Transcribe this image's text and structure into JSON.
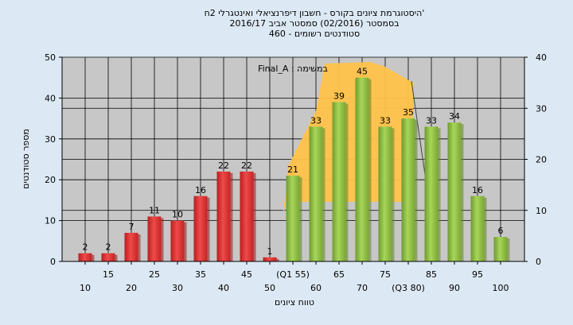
{
  "chart_data": {
    "type": "bar",
    "title_lines": [
      "'היסטוגרמת ציונים בקורס - חשבון דיפרנציאלי ואינטגרלי 2ח",
      "בסמסטר   (02/2016)  סמסטר אביב 2016/17",
      "סטודנטים רשומים - 460"
    ],
    "annotation": "במשימה : Final_A",
    "xlabel": "טווח ציונים",
    "ylabel": "מספר סטודנטים",
    "ylim": [
      0,
      50
    ],
    "y2lim": [
      0,
      40
    ],
    "yticks": [
      0,
      10,
      20,
      30,
      40,
      50
    ],
    "y2ticks": [
      0,
      10,
      20,
      30,
      40
    ],
    "grid": true,
    "categories": [
      "10",
      "15",
      "20",
      "25",
      "30",
      "35",
      "40",
      "45",
      "50",
      "(Q1 55)",
      "60",
      "65",
      "70",
      "75",
      "(Q3 80)",
      "85",
      "90",
      "95",
      "100"
    ],
    "values": [
      2,
      2,
      7,
      11,
      10,
      16,
      22,
      22,
      1,
      21,
      33,
      39,
      45,
      33,
      35,
      33,
      34,
      16,
      6
    ],
    "value_labels": [
      "2",
      "2",
      "7",
      "11",
      "10",
      "16",
      "22",
      "22",
      "1",
      "21",
      "33",
      "39",
      "45",
      "33",
      "35",
      "33",
      "34",
      "16",
      "6"
    ],
    "colors": {
      "fail": "#e23a3a",
      "pass": "#94c449",
      "iqr_band": "#ffc34a",
      "plot_bg": "#c7c7c7"
    },
    "pass_from_index": 9
  }
}
